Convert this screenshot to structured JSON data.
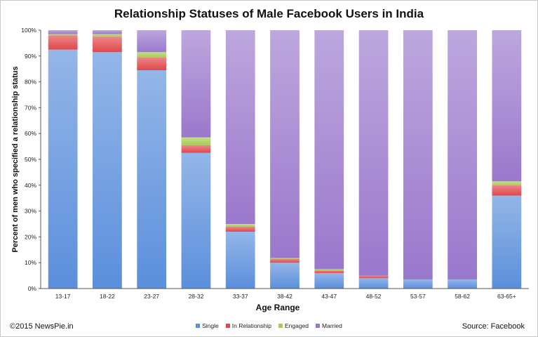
{
  "title": "Relationship Statuses of Male Facebook Users in India",
  "copyright": "©2015 NewsPie.in",
  "source": "Source: Facebook",
  "colors": {
    "Single": "#5b8fdc",
    "In Relationship": "#e0474a",
    "Engaged": "#a6cc52",
    "Married": "#9a78cc"
  },
  "chart_data": {
    "type": "bar",
    "stacked": true,
    "xlabel": "Age Range",
    "ylabel": "Percent of men who specified a relationship status",
    "ylim": [
      0,
      100
    ],
    "yticks": [
      "0%",
      "10%",
      "20%",
      "30%",
      "40%",
      "50%",
      "60%",
      "70%",
      "80%",
      "90%",
      "100%"
    ],
    "grid": false,
    "legend": "bottom",
    "categories": [
      "13-17",
      "18-22",
      "23-27",
      "28-32",
      "33-37",
      "38-42",
      "43-47",
      "48-52",
      "53-57",
      "58-62",
      "63-65+"
    ],
    "series": [
      {
        "name": "Single",
        "values": [
          92.5,
          91.5,
          84.5,
          52.5,
          22.0,
          10.0,
          6.0,
          4.0,
          3.5,
          3.5,
          36.0
        ]
      },
      {
        "name": "In Relationship",
        "values": [
          5.5,
          6.0,
          5.0,
          3.0,
          2.0,
          1.5,
          1.0,
          1.0,
          0.0,
          0.0,
          4.0
        ]
      },
      {
        "name": "Engaged",
        "values": [
          0.5,
          1.0,
          2.0,
          3.0,
          1.0,
          0.3,
          0.5,
          0.0,
          0.0,
          0.0,
          1.5
        ]
      },
      {
        "name": "Married",
        "values": [
          1.5,
          1.5,
          8.5,
          41.5,
          75.0,
          88.2,
          92.5,
          95.0,
          96.5,
          96.5,
          58.5
        ]
      }
    ]
  }
}
